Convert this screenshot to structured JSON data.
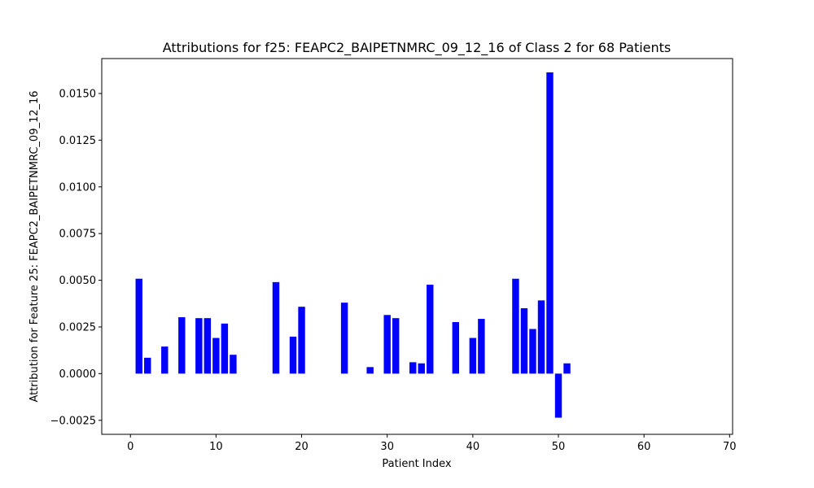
{
  "chart_data": {
    "type": "bar",
    "title": "Attributions for f25: FEAPC2_BAIPETNMRC_09_12_16 of Class 2 for 68 Patients",
    "xlabel": "Patient Index",
    "ylabel": "Attribution for Feature 25: FEAPC2_BAIPETNMRC_09_12_16",
    "xlim": [
      -3.35,
      70.35
    ],
    "ylim": [
      -0.00325,
      0.01687
    ],
    "xticks": [
      0,
      10,
      20,
      30,
      40,
      50,
      60,
      70
    ],
    "yticks": [
      -0.0025,
      0.0,
      0.0025,
      0.005,
      0.0075,
      0.01,
      0.0125,
      0.015
    ],
    "xtick_labels": [
      "0",
      "10",
      "20",
      "30",
      "40",
      "50",
      "60",
      "70"
    ],
    "ytick_labels": [
      "−0.0025",
      "0.0000",
      "0.0025",
      "0.0050",
      "0.0075",
      "0.0100",
      "0.0125",
      "0.0150"
    ],
    "bar_color": "#0000ff",
    "bar_width": 0.8,
    "grid": false,
    "x": [
      1,
      2,
      4,
      6,
      8,
      9,
      10,
      11,
      12,
      17,
      19,
      20,
      25,
      28,
      30,
      31,
      33,
      34,
      35,
      38,
      40,
      41,
      45,
      46,
      47,
      48,
      49,
      50,
      51
    ],
    "values": [
      0.00508,
      0.00085,
      0.00145,
      0.00302,
      0.00297,
      0.00297,
      0.00191,
      0.00268,
      0.00101,
      0.0049,
      0.00198,
      0.00358,
      0.0038,
      0.00035,
      0.00314,
      0.00297,
      0.00061,
      0.00055,
      0.00476,
      0.00276,
      0.00191,
      0.00293,
      0.00508,
      0.0035,
      0.00239,
      0.00392,
      0.01613,
      -0.00236,
      0.00055
    ]
  }
}
